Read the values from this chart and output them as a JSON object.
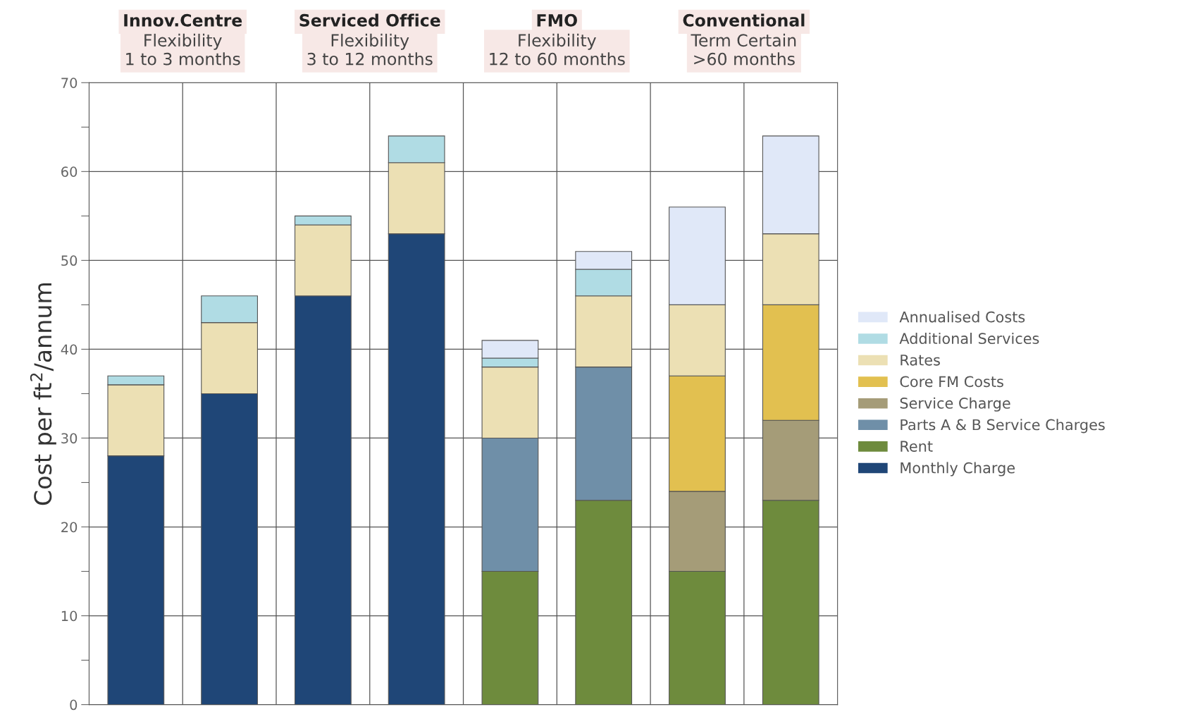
{
  "chart_data": {
    "type": "bar",
    "stacked": true,
    "ylabel": "Cost per ft$^{2}$/annum",
    "categories": [
      null,
      null,
      null,
      null,
      null,
      null,
      null,
      null
    ],
    "series": [
      {
        "name": "Monthly Charge",
        "color": "#1f4677",
        "values": [
          28,
          35,
          46,
          53,
          0,
          0,
          0,
          0
        ]
      },
      {
        "name": "Rent",
        "color": "#6e8b3d",
        "values": [
          0,
          0,
          0,
          0,
          15,
          23,
          15,
          23
        ]
      },
      {
        "name": "Parts A & B Service Charges",
        "color": "#6f8fa8",
        "values": [
          0,
          0,
          0,
          0,
          15,
          15,
          0,
          0
        ]
      },
      {
        "name": "Service Charge",
        "color": "#a59c78",
        "values": [
          0,
          0,
          0,
          0,
          0,
          0,
          9,
          9
        ]
      },
      {
        "name": "Core FM Costs",
        "color": "#e2c050",
        "values": [
          0,
          0,
          0,
          0,
          0,
          0,
          13,
          13
        ]
      },
      {
        "name": "Rates",
        "color": "#ece0b4",
        "values": [
          8,
          8,
          8,
          8,
          8,
          8,
          8,
          8
        ]
      },
      {
        "name": "Additional Services",
        "color": "#b0dce4",
        "values": [
          1,
          3,
          1,
          3,
          1,
          3,
          0,
          0
        ]
      },
      {
        "name": "Annualised Costs",
        "color": "#e0e8f8",
        "values": [
          0,
          0,
          0,
          0,
          2,
          2,
          11,
          11
        ]
      }
    ],
    "ylim": [
      0,
      70
    ],
    "yticks": [
      0,
      {
        "value": 5,
        "label": null
      },
      10,
      {
        "value": 15,
        "label": null
      },
      20,
      {
        "value": 25,
        "label": null
      },
      30,
      {
        "value": 35,
        "label": null
      },
      40,
      {
        "value": 45,
        "label": null
      },
      50,
      {
        "value": 55,
        "label": null
      },
      60,
      {
        "value": 65,
        "label": null
      },
      70
    ],
    "grid": true,
    "legend": "right",
    "annotations": [
      "Innov.Centre\nFlexibility\n1 to 3 months",
      "Serviced Office\nFlexibility\n3 to 12 months",
      "FMO\nFlexibility\n12 to 60 months",
      "Conventional\nTerm Certain\n>60 months"
    ]
  }
}
